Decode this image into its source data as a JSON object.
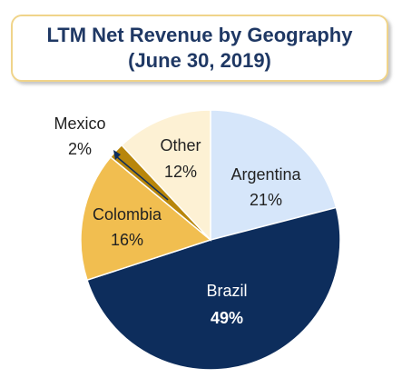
{
  "chart_data": {
    "type": "pie",
    "title": "LTM Net Revenue by Geography",
    "subtitle": "(June 30, 2019)",
    "slices": [
      {
        "label": "Argentina",
        "value": 21,
        "value_label": "21%",
        "color": "#d6e6fa",
        "text_color": "#222222"
      },
      {
        "label": "Brazil",
        "value": 49,
        "value_label": "49%",
        "color": "#0d2d5c",
        "text_color": "#ffffff"
      },
      {
        "label": "Colombia",
        "value": 16,
        "value_label": "16%",
        "color": "#f1be50",
        "text_color": "#222222"
      },
      {
        "label": "Mexico",
        "value": 2,
        "value_label": "2%",
        "color": "#b8860b",
        "text_color": "#222222"
      },
      {
        "label": "Other",
        "value": 12,
        "value_label": "12%",
        "color": "#fdf1d4",
        "text_color": "#222222"
      }
    ]
  }
}
